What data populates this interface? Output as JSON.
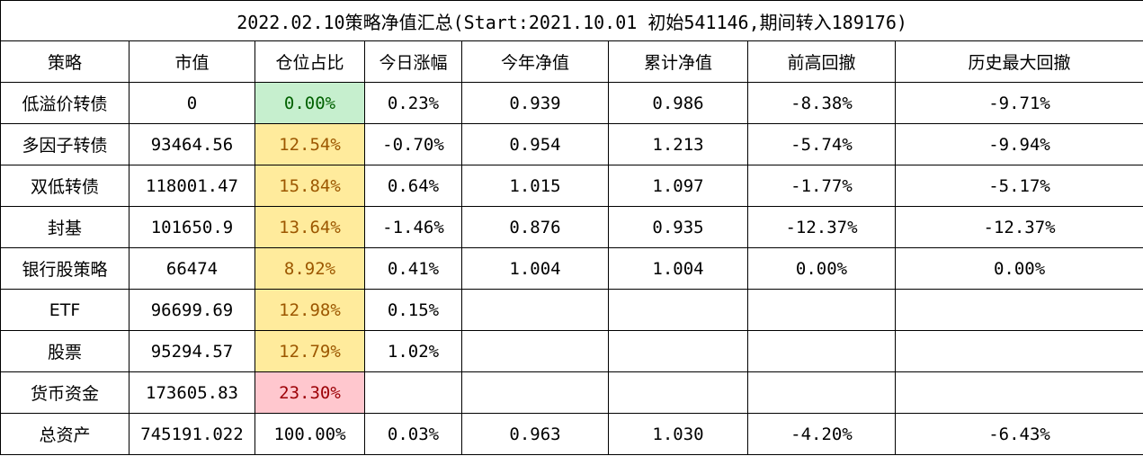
{
  "title": "2022.02.10策略净值汇总(Start:2021.10.01 初始541146,期间转入189176)",
  "headers": [
    "策略",
    "市值",
    "仓位占比",
    "今日涨幅",
    "今年净值",
    "累计净值",
    "前高回撤",
    "历史最大回撤"
  ],
  "rows": [
    [
      "低溢价转债",
      "0",
      "0.00%",
      "0.23%",
      "0.939",
      "0.986",
      "-8.38%",
      "-9.71%"
    ],
    [
      "多因子转债",
      "93464.56",
      "12.54%",
      "-0.70%",
      "0.954",
      "1.213",
      "-5.74%",
      "-9.94%"
    ],
    [
      "双低转债",
      "118001.47",
      "15.84%",
      "0.64%",
      "1.015",
      "1.097",
      "-1.77%",
      "-5.17%"
    ],
    [
      "封基",
      "101650.9",
      "13.64%",
      "-1.46%",
      "0.876",
      "0.935",
      "-12.37%",
      "-12.37%"
    ],
    [
      "银行股策略",
      "66474",
      "8.92%",
      "0.41%",
      "1.004",
      "1.004",
      "0.00%",
      "0.00%"
    ],
    [
      "ETF",
      "96699.69",
      "12.98%",
      "0.15%",
      "",
      "",
      "",
      ""
    ],
    [
      "股票",
      "95294.57",
      "12.79%",
      "1.02%",
      "",
      "",
      "",
      ""
    ],
    [
      "货币资金",
      "173605.83",
      "23.30%",
      "",
      "",
      "",
      "",
      ""
    ],
    [
      "总资产",
      "745191.022",
      "100.00%",
      "0.03%",
      "0.963",
      "1.030",
      "-4.20%",
      "-6.43%"
    ]
  ],
  "position_highlight": [
    "green",
    "yellow",
    "yellow",
    "yellow",
    "yellow",
    "yellow",
    "yellow",
    "red",
    "none"
  ],
  "colors": {
    "green_fill": "#c6efce",
    "green_text": "#006100",
    "yellow_fill": "#ffeb9c",
    "yellow_text": "#9c5700",
    "red_fill": "#ffc7ce",
    "red_text": "#9c0006",
    "border": "#000000"
  }
}
